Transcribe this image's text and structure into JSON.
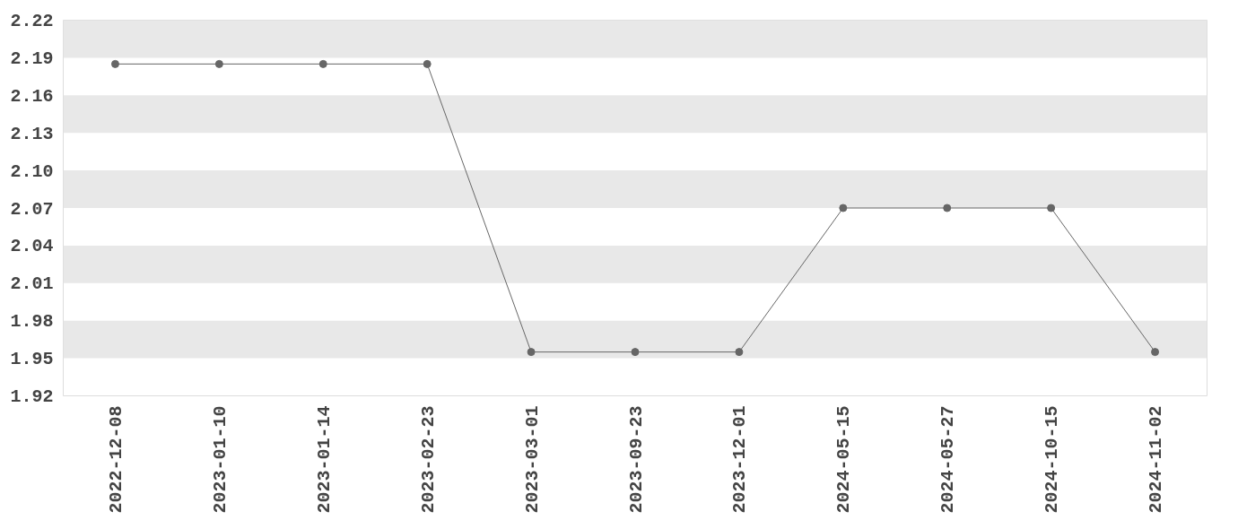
{
  "chart_data": {
    "type": "line",
    "categories": [
      "2022-12-08",
      "2023-01-10",
      "2023-01-14",
      "2023-02-23",
      "2023-03-01",
      "2023-09-23",
      "2023-12-01",
      "2024-05-15",
      "2024-05-27",
      "2024-10-15",
      "2024-11-02"
    ],
    "series": [
      {
        "color": "#666666",
        "values": [
          2.185,
          2.185,
          2.185,
          2.185,
          1.955,
          1.955,
          1.955,
          2.07,
          2.07,
          2.07,
          1.955
        ]
      }
    ],
    "ylim": [
      1.92,
      2.22
    ],
    "yticks": [
      1.92,
      1.95,
      1.98,
      2.01,
      2.04,
      2.07,
      {
        "value": 2.1,
        "label": "2.10"
      },
      2.13,
      2.16,
      2.19,
      2.22
    ],
    "bands": [
      {
        "axis": "y",
        "from": 1.95,
        "to": 1.98,
        "color": "#e8e8e8"
      },
      {
        "axis": "y",
        "from": 2.01,
        "to": 2.04,
        "color": "#e8e8e8"
      },
      {
        "axis": "y",
        "from": 2.07,
        "to": 2.1,
        "color": "#e8e8e8"
      },
      {
        "axis": "y",
        "from": 2.13,
        "to": 2.16,
        "color": "#e8e8e8"
      },
      {
        "axis": "y",
        "from": 2.19,
        "to": 2.22,
        "color": "#e8e8e8"
      }
    ],
    "marker": "circle",
    "line_style": "solid"
  }
}
